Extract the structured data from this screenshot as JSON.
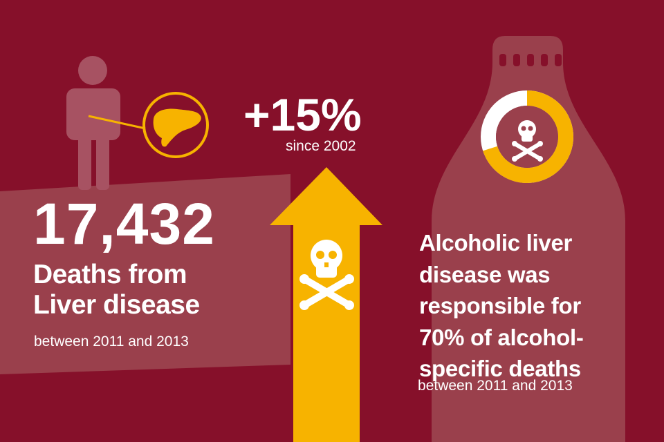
{
  "stat_deaths": {
    "number": "17,432",
    "headline_line1": "Deaths from",
    "headline_line2": "Liver disease",
    "period": "between 2011 and 2013"
  },
  "stat_increase": {
    "value": "+15%",
    "since": "since 2002"
  },
  "stat_share": {
    "line1": "Alcoholic liver",
    "line2": "disease was",
    "line3": "responsible for",
    "line4": "70% of alcohol-",
    "line5": "specific deaths",
    "period": "between 2011 and 2013",
    "donut_fraction": 0.7
  },
  "colors": {
    "background": "#86102a",
    "panel": "#9a404c",
    "accent": "#f7b300",
    "light": "#ffffff"
  },
  "icons": [
    "person-icon",
    "liver-icon",
    "arrow-up-icon",
    "skull-crossbones-icon",
    "bottle-icon",
    "donut-chart-icon"
  ]
}
